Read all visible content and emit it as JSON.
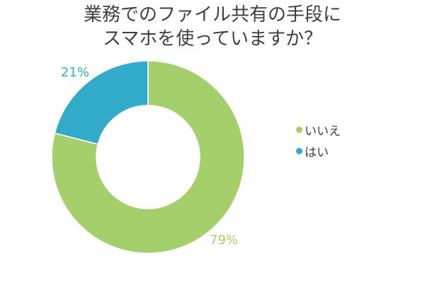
{
  "chart_data": {
    "type": "pie",
    "title_lines": [
      "業務でのファイル共有の手段に",
      "スマホを使っていますか？"
    ],
    "slices": [
      {
        "label": "いいえ",
        "value": 79,
        "display": "79%",
        "color": "#a5cf6a"
      },
      {
        "label": "はい",
        "value": 21,
        "display": "21%",
        "color": "#31abc9"
      }
    ],
    "unit": "%",
    "donut": true,
    "legend_position": "right"
  }
}
